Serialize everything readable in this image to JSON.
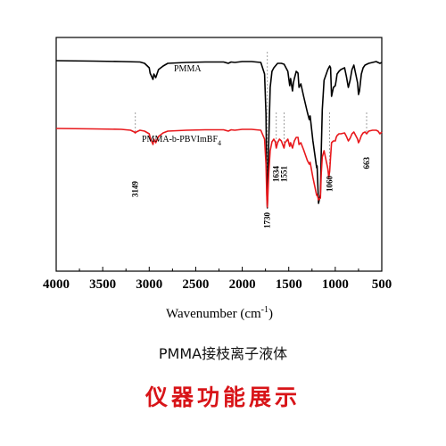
{
  "chart_data": {
    "type": "line",
    "xlabel": "Wavenumber (cm",
    "xlabel_sup": "-1",
    "xlabel_close": ")",
    "xlim": [
      4000,
      500
    ],
    "xticks": [
      4000,
      3500,
      3000,
      2500,
      2000,
      1500,
      1000,
      500
    ],
    "grid": false,
    "series": [
      {
        "name": "PMMA",
        "color": "#000000",
        "x": [
          4000,
          3600,
          3300,
          3100,
          3050,
          3000,
          2990,
          2960,
          2950,
          2930,
          2900,
          2850,
          2800,
          2600,
          2400,
          2200,
          2150,
          2120,
          2080,
          2000,
          1900,
          1800,
          1760,
          1745,
          1735,
          1730,
          1725,
          1715,
          1700,
          1680,
          1660,
          1620,
          1580,
          1550,
          1510,
          1490,
          1480,
          1460,
          1450,
          1440,
          1420,
          1400,
          1390,
          1370,
          1340,
          1300,
          1280,
          1270,
          1240,
          1200,
          1195,
          1180,
          1160,
          1150,
          1140,
          1120,
          1080,
          1060,
          1050,
          1040,
          1020,
          1000,
          990,
          980,
          960,
          940,
          900,
          880,
          860,
          840,
          820,
          800,
          780,
          760,
          750,
          740,
          720,
          700,
          680,
          640,
          600,
          560,
          540,
          520,
          500
        ],
        "y": [
          0,
          0.5,
          1,
          1.5,
          3,
          8,
          14,
          21,
          15,
          19,
          10,
          6,
          3,
          2,
          1.5,
          1.5,
          3,
          1.5,
          2,
          1,
          1,
          2,
          15,
          60,
          150,
          165,
          140,
          90,
          30,
          12,
          8,
          3,
          3,
          4,
          12,
          28,
          20,
          34,
          25,
          20,
          12,
          14,
          30,
          26,
          40,
          58,
          66,
          62,
          90,
          120,
          118,
          160,
          150,
          100,
          55,
          22,
          10,
          6,
          8,
          40,
          30,
          28,
          22,
          15,
          12,
          10,
          8,
          18,
          30,
          22,
          10,
          5,
          15,
          25,
          38,
          34,
          15,
          8,
          5,
          3,
          2,
          1,
          2,
          3,
          2
        ]
      },
      {
        "name": "PMMA-b-PBVImBF4",
        "color": "#e8181c",
        "x": [
          4000,
          3600,
          3300,
          3200,
          3160,
          3150,
          3140,
          3100,
          3050,
          3000,
          2990,
          2960,
          2950,
          2930,
          2900,
          2850,
          2800,
          2600,
          2400,
          2200,
          2150,
          2120,
          2080,
          2000,
          1900,
          1800,
          1760,
          1745,
          1735,
          1730,
          1725,
          1715,
          1700,
          1680,
          1660,
          1645,
          1634,
          1620,
          1600,
          1580,
          1565,
          1551,
          1540,
          1510,
          1490,
          1480,
          1460,
          1450,
          1440,
          1420,
          1400,
          1390,
          1370,
          1340,
          1300,
          1280,
          1270,
          1240,
          1200,
          1195,
          1180,
          1160,
          1150,
          1140,
          1120,
          1080,
          1070,
          1060,
          1050,
          1040,
          1020,
          1000,
          990,
          980,
          960,
          940,
          900,
          880,
          860,
          840,
          820,
          800,
          780,
          760,
          750,
          740,
          720,
          700,
          680,
          663,
          640,
          600,
          560,
          540,
          520,
          500
        ],
        "y": [
          0,
          0.5,
          1,
          2,
          4,
          5,
          4,
          2,
          3,
          6,
          10,
          18,
          12,
          16,
          9,
          5,
          3,
          2,
          1.5,
          1.5,
          3,
          1.5,
          2,
          1,
          1,
          2,
          12,
          40,
          80,
          88,
          75,
          50,
          25,
          15,
          12,
          15,
          22,
          16,
          12,
          14,
          18,
          22,
          16,
          12,
          20,
          16,
          22,
          18,
          14,
          10,
          10,
          18,
          16,
          24,
          36,
          40,
          38,
          55,
          75,
          74,
          80,
          78,
          50,
          32,
          25,
          45,
          55,
          48,
          32,
          16,
          14,
          14,
          10,
          8,
          6,
          6,
          5,
          9,
          14,
          11,
          6,
          4,
          8,
          12,
          16,
          14,
          8,
          5,
          4,
          6,
          3,
          2,
          2,
          3,
          6,
          4
        ]
      }
    ],
    "annotations": [
      {
        "label": "3149",
        "x": 3149
      },
      {
        "label": "1730",
        "x": 1730
      },
      {
        "label": "1634",
        "x": 1634
      },
      {
        "label": "1551",
        "x": 1551
      },
      {
        "label": "1060",
        "x": 1060
      },
      {
        "label": "663",
        "x": 663
      }
    ]
  },
  "captions": {
    "subtitle": "PMMA接枝离子液体",
    "main": "仪器功能展示"
  }
}
